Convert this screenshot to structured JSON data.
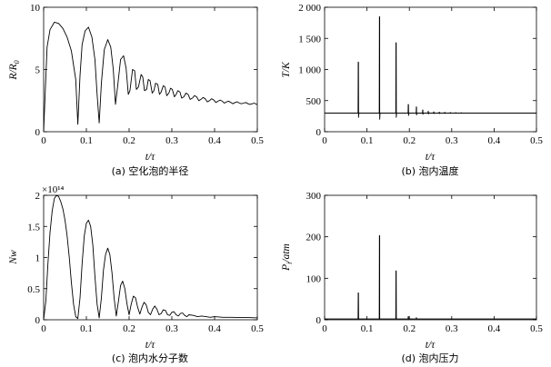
{
  "chart_data": [
    {
      "type": "line",
      "id": "a",
      "ylabel": "R/R",
      "ylabel_sub": "0",
      "xlabel": "t/τ",
      "caption": "(a) 空化泡的半径",
      "xlim": [
        0,
        0.5
      ],
      "ylim": [
        0,
        10
      ],
      "xticks": [
        "0",
        "0.1",
        "0.2",
        "0.3",
        "0.4",
        "0.5"
      ],
      "yticks": [
        "0",
        "5",
        "10"
      ],
      "series": [
        {
          "x": [
            0,
            0.004,
            0.008,
            0.015,
            0.025,
            0.035,
            0.045,
            0.055,
            0.065,
            0.075,
            0.08,
            0.085,
            0.09,
            0.097,
            0.105,
            0.113,
            0.12,
            0.125,
            0.13,
            0.135,
            0.142,
            0.15,
            0.157,
            0.163,
            0.168,
            0.173,
            0.18,
            0.187,
            0.193,
            0.198,
            0.202,
            0.208,
            0.213,
            0.217,
            0.222,
            0.228,
            0.232,
            0.236,
            0.241,
            0.245,
            0.249,
            0.254,
            0.258,
            0.262,
            0.267,
            0.271,
            0.275,
            0.28,
            0.284,
            0.288,
            0.293,
            0.297,
            0.301,
            0.306,
            0.31,
            0.314,
            0.319,
            0.323,
            0.328,
            0.333,
            0.338,
            0.343,
            0.348,
            0.353,
            0.358,
            0.363,
            0.368,
            0.373,
            0.378,
            0.383,
            0.388,
            0.393,
            0.398,
            0.403,
            0.408,
            0.413,
            0.418,
            0.423,
            0.428,
            0.433,
            0.438,
            0.443,
            0.448,
            0.453,
            0.458,
            0.463,
            0.468,
            0.473,
            0.478,
            0.483,
            0.488,
            0.493,
            0.498,
            0.5
          ],
          "y": [
            0,
            3.5,
            6.8,
            8.2,
            8.8,
            8.7,
            8.3,
            7.6,
            6.5,
            4.2,
            0.6,
            4.5,
            7.0,
            8.1,
            8.4,
            7.6,
            5.8,
            3.0,
            0.7,
            3.9,
            6.6,
            7.4,
            6.8,
            5.0,
            2.2,
            3.6,
            5.8,
            6.1,
            5.1,
            3.0,
            3.3,
            5.0,
            4.9,
            3.4,
            3.6,
            4.6,
            4.4,
            3.3,
            3.4,
            4.2,
            4.1,
            3.1,
            3.3,
            3.9,
            3.8,
            3.0,
            3.2,
            3.7,
            3.6,
            2.9,
            3.1,
            3.5,
            3.4,
            2.8,
            3.0,
            3.3,
            3.2,
            2.7,
            2.8,
            3.1,
            3.0,
            2.6,
            2.7,
            2.9,
            2.8,
            2.5,
            2.6,
            2.75,
            2.65,
            2.4,
            2.5,
            2.65,
            2.55,
            2.35,
            2.45,
            2.55,
            2.45,
            2.3,
            2.4,
            2.45,
            2.35,
            2.25,
            2.35,
            2.4,
            2.3,
            2.25,
            2.3,
            2.35,
            2.25,
            2.2,
            2.25,
            2.3,
            2.2,
            2.2
          ]
        }
      ]
    },
    {
      "type": "line",
      "id": "b",
      "ylabel": "T/K",
      "xlabel": "t/τ",
      "caption": "(b) 泡内温度",
      "xlim": [
        0,
        0.5
      ],
      "ylim": [
        0,
        2000
      ],
      "xticks": [
        "0",
        "0.1",
        "0.2",
        "0.3",
        "0.4",
        "0.5"
      ],
      "yticks": [
        "0",
        "500",
        "1 000",
        "1 500",
        "2 000"
      ],
      "baseline": 300,
      "spikes": [
        {
          "x": 0.08,
          "peak": 1120,
          "trough": 230
        },
        {
          "x": 0.13,
          "peak": 1850,
          "trough": 200
        },
        {
          "x": 0.169,
          "peak": 1430,
          "trough": 230
        },
        {
          "x": 0.198,
          "peak": 440,
          "trough": 260
        },
        {
          "x": 0.217,
          "peak": 400,
          "trough": 270
        },
        {
          "x": 0.232,
          "peak": 350,
          "trough": 280
        },
        {
          "x": 0.245,
          "peak": 330,
          "trough": 285
        },
        {
          "x": 0.258,
          "peak": 320,
          "trough": 290
        },
        {
          "x": 0.271,
          "peak": 315,
          "trough": 292
        },
        {
          "x": 0.284,
          "peak": 312,
          "trough": 294
        },
        {
          "x": 0.297,
          "peak": 310,
          "trough": 295
        },
        {
          "x": 0.31,
          "peak": 308,
          "trough": 296
        },
        {
          "x": 0.323,
          "peak": 306,
          "trough": 297
        }
      ]
    },
    {
      "type": "line",
      "id": "c",
      "ylabel": "Nw",
      "xlabel": "t/τ",
      "caption": "(c) 泡内水分子数",
      "multiplier": "×10¹⁴",
      "xlim": [
        0,
        0.5
      ],
      "ylim": [
        0,
        2
      ],
      "xticks": [
        "0",
        "0.1",
        "0.2",
        "0.3",
        "0.4",
        "0.5"
      ],
      "yticks": [
        "0",
        "0.5",
        "1",
        "1.5",
        "2"
      ],
      "series": [
        {
          "x": [
            0,
            0.005,
            0.01,
            0.015,
            0.02,
            0.025,
            0.03,
            0.035,
            0.04,
            0.045,
            0.05,
            0.055,
            0.06,
            0.065,
            0.07,
            0.075,
            0.08,
            0.085,
            0.09,
            0.095,
            0.1,
            0.105,
            0.11,
            0.115,
            0.12,
            0.125,
            0.13,
            0.135,
            0.14,
            0.145,
            0.15,
            0.155,
            0.16,
            0.165,
            0.17,
            0.175,
            0.18,
            0.185,
            0.19,
            0.195,
            0.2,
            0.205,
            0.21,
            0.215,
            0.22,
            0.225,
            0.23,
            0.235,
            0.24,
            0.245,
            0.25,
            0.255,
            0.26,
            0.265,
            0.27,
            0.275,
            0.28,
            0.285,
            0.29,
            0.295,
            0.3,
            0.305,
            0.31,
            0.315,
            0.32,
            0.325,
            0.33,
            0.335,
            0.34,
            0.35,
            0.36,
            0.37,
            0.38,
            0.39,
            0.4,
            0.42,
            0.44,
            0.46,
            0.48,
            0.5
          ],
          "y": [
            0,
            0.3,
            0.9,
            1.4,
            1.75,
            1.95,
            2.0,
            1.98,
            1.9,
            1.78,
            1.6,
            1.35,
            1.0,
            0.6,
            0.25,
            0.05,
            0.02,
            0.35,
            0.9,
            1.35,
            1.55,
            1.6,
            1.5,
            1.2,
            0.7,
            0.25,
            0.03,
            0.35,
            0.8,
            1.05,
            1.15,
            1.05,
            0.75,
            0.35,
            0.06,
            0.3,
            0.55,
            0.62,
            0.5,
            0.25,
            0.08,
            0.25,
            0.38,
            0.35,
            0.2,
            0.09,
            0.2,
            0.28,
            0.24,
            0.12,
            0.08,
            0.17,
            0.22,
            0.17,
            0.08,
            0.1,
            0.16,
            0.15,
            0.08,
            0.07,
            0.12,
            0.13,
            0.08,
            0.06,
            0.1,
            0.11,
            0.07,
            0.05,
            0.08,
            0.07,
            0.05,
            0.06,
            0.05,
            0.04,
            0.05,
            0.04,
            0.04,
            0.035,
            0.035,
            0.03
          ]
        }
      ]
    },
    {
      "type": "line",
      "id": "d",
      "ylabel": "P",
      "ylabel_sub": "i",
      "ylabel_unit": "/atm",
      "xlabel": "t/τ",
      "caption": "(d) 泡内压力",
      "xlim": [
        0,
        0.5
      ],
      "ylim": [
        0,
        300
      ],
      "xticks": [
        "0",
        "0.1",
        "0.2",
        "0.3",
        "0.4",
        "0.5"
      ],
      "yticks": [
        "0",
        "100",
        "200",
        "300"
      ],
      "baseline": 2,
      "spikes": [
        {
          "x": 0.08,
          "peak": 65
        },
        {
          "x": 0.13,
          "peak": 203
        },
        {
          "x": 0.169,
          "peak": 118
        },
        {
          "x": 0.198,
          "peak": 8
        },
        {
          "x": 0.217,
          "peak": 5
        }
      ]
    }
  ]
}
